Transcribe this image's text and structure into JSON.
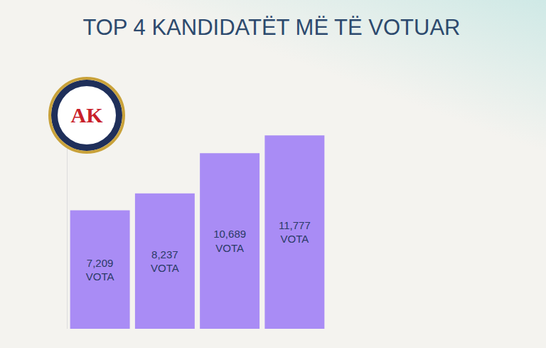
{
  "chart_data": {
    "type": "bar",
    "title": "TOP 4 KANDIDATËT MË TË VOTUAR",
    "categories": [
      null,
      null,
      null,
      null
    ],
    "values": [
      7209,
      8237,
      10689,
      11777
    ],
    "value_labels": [
      "7,209 VOTA",
      "8,237 VOTA",
      "10,689 VOTA",
      "11,777 VOTA"
    ],
    "color": "#a98cf5",
    "ylim": [
      0,
      12000
    ],
    "yticks": [],
    "grid": false,
    "data_labels": true,
    "tick_labels": false,
    "annotations": [
      "AK"
    ]
  }
}
